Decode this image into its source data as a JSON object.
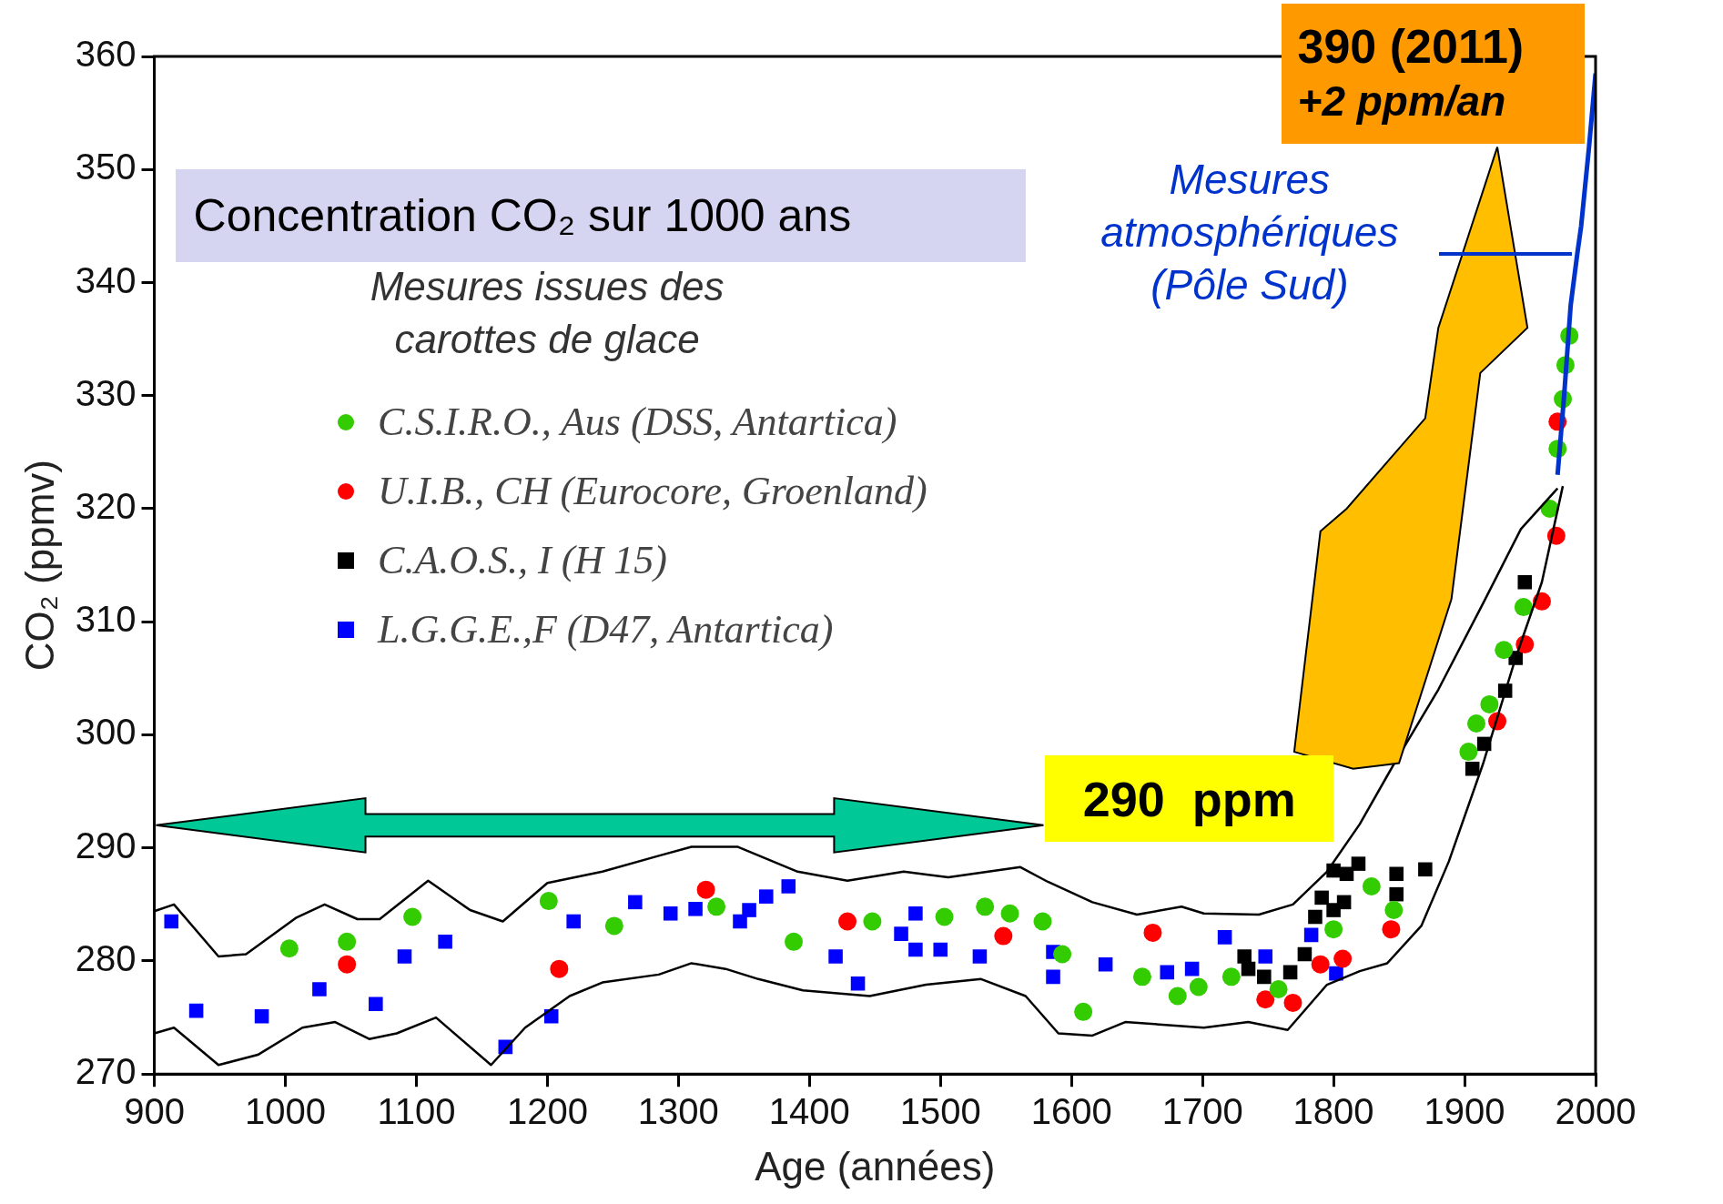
{
  "chart_data": {
    "type": "scatter",
    "title": "Concentration  CO₂ sur 1000 ans",
    "xlabel": "Age (années)",
    "ylabel": "CO₂ (ppmv)",
    "legend_title": "Mesures issues des carottes de glace",
    "legend": "top left",
    "grid": false,
    "xlim": [
      900,
      2000
    ],
    "xticks": [
      900,
      1000,
      1100,
      1200,
      1300,
      1400,
      1500,
      1600,
      1700,
      1800,
      1900,
      2000
    ],
    "ylim": [
      270,
      360
    ],
    "yticks": [
      270,
      280,
      290,
      300,
      310,
      320,
      330,
      340,
      350,
      360
    ],
    "annotations": [
      "290  ppm",
      "390 (2011)",
      "+2 ppm/an"
    ],
    "series": [
      {
        "type": "line",
        "color": "#000000",
        "marker": "none",
        "x": [
          900,
          915,
          949,
          970,
          1008,
          1030,
          1055,
          1072,
          1109,
          1141,
          1166,
          1200,
          1242,
          1285,
          1310,
          1345,
          1391,
          1429,
          1472,
          1506,
          1561,
          1582,
          1616,
          1650,
          1684,
          1701,
          1743,
          1769,
          1795,
          1820,
          1846,
          1880,
          1914,
          1943,
          1971
        ],
        "values": [
          284.4,
          285,
          280.4,
          280.6,
          283.8,
          285,
          283.7,
          283.7,
          287.1,
          284.5,
          283.5,
          286.9,
          287.9,
          289.3,
          290.1,
          290.1,
          287.9,
          287.1,
          287.9,
          287.4,
          288.3,
          287,
          285.2,
          284.1,
          284.8,
          284.2,
          284.1,
          285,
          287.9,
          292.1,
          297.4,
          304,
          311.6,
          318.2,
          321.8
        ]
      },
      {
        "type": "line",
        "color": "#000000",
        "marker": "none",
        "x": [
          900,
          915,
          949,
          979,
          1013,
          1038,
          1064,
          1085,
          1115,
          1157,
          1183,
          1217,
          1242,
          1285,
          1310,
          1336,
          1361,
          1395,
          1446,
          1489,
          1531,
          1565,
          1590,
          1616,
          1641,
          1701,
          1735,
          1765,
          1795,
          1820,
          1841,
          1867,
          1888,
          1914,
          1939,
          1959,
          1975
        ],
        "values": [
          273.6,
          274.1,
          270.8,
          271.7,
          274.1,
          274.6,
          273.1,
          273.6,
          275,
          270.8,
          274.1,
          276.9,
          278.1,
          278.8,
          279.8,
          279.3,
          278.4,
          277.4,
          276.9,
          277.9,
          278.4,
          276.9,
          273.6,
          273.4,
          274.6,
          274.1,
          274.6,
          273.9,
          277.9,
          279.1,
          279.8,
          283.1,
          288.8,
          297.4,
          306.8,
          313.5,
          322
        ]
      },
      {
        "type": "line",
        "name": "Mesures atmosphériques (Pôle Sud)",
        "color": "#0033cc",
        "marker": "none",
        "x": [
          1971,
          1976,
          1981,
          1986,
          1989,
          1995,
          2000
        ],
        "values": [
          323,
          330,
          338,
          342.5,
          345,
          352,
          358.5
        ]
      },
      {
        "type": "scatter",
        "name": "C.S.I.R.O., Aus (DSS, Antartica)",
        "color": "#33cc00",
        "marker": "circle",
        "x": [
          1003,
          1047,
          1097,
          1201,
          1251,
          1329,
          1388,
          1448,
          1503,
          1534,
          1553,
          1578,
          1593,
          1609,
          1654,
          1681,
          1697,
          1722,
          1758,
          1800,
          1829,
          1846,
          1903,
          1909,
          1919,
          1930,
          1945,
          1965,
          1971,
          1975,
          1977,
          1980
        ],
        "values": [
          281.1,
          281.7,
          283.9,
          285.3,
          283.1,
          284.8,
          281.7,
          283.5,
          283.9,
          284.8,
          284.2,
          283.5,
          280.6,
          275.5,
          278.6,
          276.9,
          277.7,
          278.6,
          277.5,
          282.8,
          286.6,
          284.5,
          298.5,
          301.0,
          302.7,
          307.5,
          311.3,
          320.0,
          325.3,
          329.7,
          332.7,
          335.3
        ]
      },
      {
        "type": "scatter",
        "name": "U.I.B., CH (Eurocore, Groenland)",
        "color": "#ff0000",
        "marker": "circle",
        "x": [
          1047,
          1209,
          1321,
          1429,
          1548,
          1662,
          1748,
          1769,
          1790,
          1807,
          1844,
          1925,
          1946,
          1959,
          1970,
          1971
        ],
        "values": [
          279.7,
          279.3,
          286.3,
          283.5,
          282.2,
          282.5,
          276.6,
          276.3,
          279.7,
          280.2,
          282.8,
          301.2,
          308.0,
          311.8,
          317.6,
          327.7
        ]
      },
      {
        "type": "scatter",
        "name": "C.A.O.S., I (H 15)",
        "color": "#000000",
        "marker": "square",
        "x": [
          1732,
          1735,
          1747,
          1767,
          1778,
          1786,
          1791,
          1800,
          1800,
          1808,
          1810,
          1819,
          1848,
          1848,
          1870,
          1906,
          1915,
          1931,
          1939,
          1946
        ],
        "values": [
          280.4,
          279.3,
          278.6,
          279.0,
          280.6,
          283.9,
          285.6,
          284.5,
          288.0,
          285.2,
          287.7,
          288.6,
          287.7,
          285.9,
          288.1,
          297.0,
          299.2,
          303.9,
          306.8,
          313.5
        ]
      },
      {
        "type": "scatter",
        "name": "L.G.G.E.,F (D47, Antartica)",
        "color": "#0000ff",
        "marker": "square",
        "x": [
          913,
          932,
          982,
          1026,
          1069,
          1091,
          1122,
          1168,
          1203,
          1220,
          1267,
          1294,
          1313,
          1347,
          1354,
          1367,
          1384,
          1420,
          1437,
          1470,
          1481,
          1481,
          1500,
          1530,
          1586,
          1586,
          1626,
          1673,
          1692,
          1717,
          1748,
          1783,
          1802
        ],
        "values": [
          283.5,
          275.6,
          275.1,
          277.5,
          276.2,
          280.4,
          281.7,
          272.4,
          275.1,
          283.5,
          285.2,
          284.2,
          284.6,
          283.5,
          284.5,
          285.7,
          286.6,
          280.4,
          278.0,
          282.4,
          284.2,
          281.0,
          281.0,
          280.4,
          280.8,
          278.6,
          279.7,
          279.0,
          279.3,
          282.1,
          280.4,
          282.3,
          278.9
        ]
      }
    ]
  }
}
